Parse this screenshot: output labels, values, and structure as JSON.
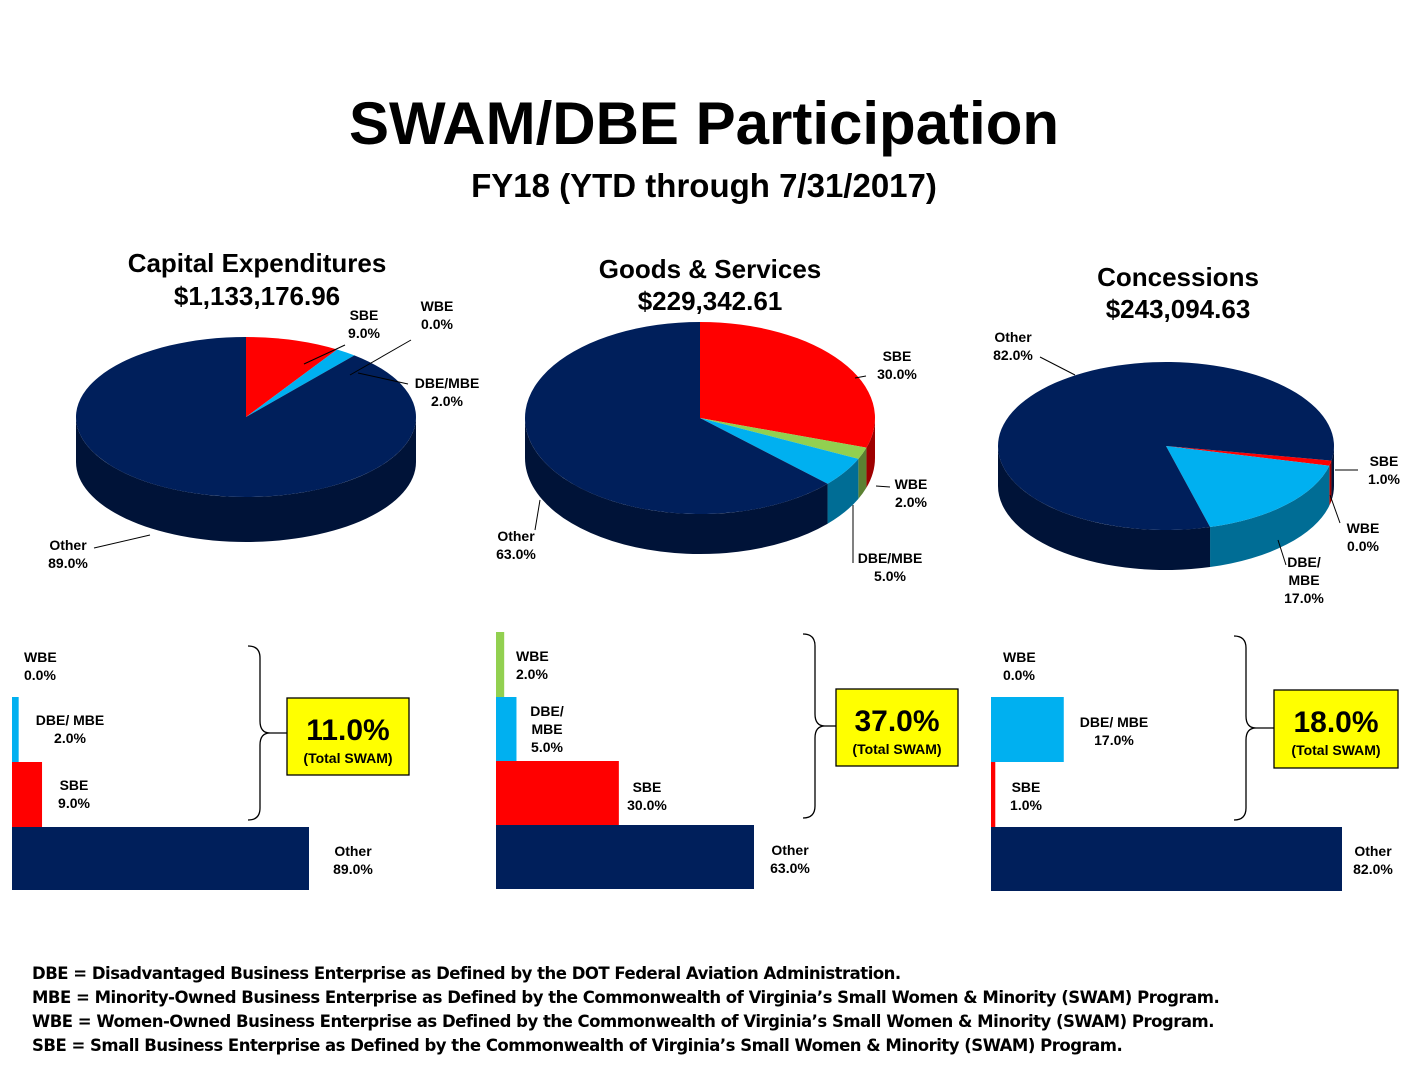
{
  "title": "SWAM/DBE Participation",
  "subtitle": "FY18 (YTD through 7/31/2017)",
  "colors": {
    "other": "#001f5b",
    "sbe": "#ff0000",
    "wbe": "#92d050",
    "dbe_mbe": "#00b0f0",
    "total_box": "#ffff00"
  },
  "chart_data": [
    {
      "type": "pie",
      "title": "Capital Expenditures",
      "amount": "$1,133,176.96",
      "slices": [
        {
          "key": "sbe",
          "value": 9.0,
          "label_lines": [
            "SBE",
            "9.0%"
          ]
        },
        {
          "key": "wbe",
          "value": 0.0,
          "label_lines": [
            "WBE",
            "0.0%"
          ]
        },
        {
          "key": "dbe_mbe",
          "value": 2.0,
          "label_lines": [
            "DBE/MBE",
            "2.0%"
          ]
        },
        {
          "key": "other",
          "value": 89.0,
          "label_lines": [
            "Other",
            "89.0%"
          ]
        }
      ]
    },
    {
      "type": "pie",
      "title": "Goods & Services",
      "amount": "$229,342.61",
      "slices": [
        {
          "key": "sbe",
          "value": 30.0,
          "label_lines": [
            "SBE",
            "30.0%"
          ]
        },
        {
          "key": "wbe",
          "value": 2.0,
          "label_lines": [
            "WBE",
            "2.0%"
          ]
        },
        {
          "key": "dbe_mbe",
          "value": 5.0,
          "label_lines": [
            "DBE/MBE",
            "5.0%"
          ]
        },
        {
          "key": "other",
          "value": 63.0,
          "label_lines": [
            "Other",
            "63.0%"
          ]
        }
      ]
    },
    {
      "type": "pie",
      "title": "Concessions",
      "amount": "$243,094.63",
      "slices": [
        {
          "key": "sbe",
          "value": 1.0,
          "label_lines": [
            "SBE",
            "1.0%"
          ]
        },
        {
          "key": "wbe",
          "value": 0.0,
          "label_lines": [
            "WBE",
            "0.0%"
          ]
        },
        {
          "key": "dbe_mbe",
          "value": 17.0,
          "label_lines": [
            "DBE/",
            "MBE",
            "17.0%"
          ]
        },
        {
          "key": "other",
          "value": 82.0,
          "label_lines": [
            "Other",
            "82.0%"
          ]
        }
      ]
    },
    {
      "type": "bar",
      "orientation": "horizontal",
      "categories": [
        "WBE",
        "DBE/ MBE",
        "SBE",
        "Other"
      ],
      "series_keys": [
        "wbe",
        "dbe_mbe",
        "sbe",
        "other"
      ],
      "values": [
        0.0,
        2.0,
        9.0,
        89.0
      ],
      "label_lines": [
        [
          "WBE",
          "0.0%"
        ],
        [
          "DBE/ MBE",
          "2.0%"
        ],
        [
          "SBE",
          "9.0%"
        ],
        [
          "Other",
          "89.0%"
        ]
      ],
      "total": "11.0%",
      "total_label": "(Total SWAM)"
    },
    {
      "type": "bar",
      "orientation": "horizontal",
      "categories": [
        "WBE",
        "DBE/ MBE",
        "SBE",
        "Other"
      ],
      "series_keys": [
        "wbe",
        "dbe_mbe",
        "sbe",
        "other"
      ],
      "values": [
        2.0,
        5.0,
        30.0,
        63.0
      ],
      "label_lines": [
        [
          "WBE",
          "2.0%"
        ],
        [
          "DBE/",
          "MBE",
          "5.0%"
        ],
        [
          "SBE",
          "30.0%"
        ],
        [
          "Other",
          "63.0%"
        ]
      ],
      "total": "37.0%",
      "total_label": "(Total SWAM)"
    },
    {
      "type": "bar",
      "orientation": "horizontal",
      "categories": [
        "WBE",
        "DBE/ MBE",
        "SBE",
        "Other"
      ],
      "series_keys": [
        "wbe",
        "dbe_mbe",
        "sbe",
        "other"
      ],
      "values": [
        0.0,
        17.0,
        1.0,
        82.0
      ],
      "label_lines": [
        [
          "WBE",
          "0.0%"
        ],
        [
          "DBE/ MBE",
          "17.0%"
        ],
        [
          "SBE",
          "1.0%"
        ],
        [
          "Other",
          "82.0%"
        ]
      ],
      "total": "18.0%",
      "total_label": "(Total SWAM)"
    }
  ],
  "footnotes": [
    "DBE = Disadvantaged Business Enterprise as Defined by the DOT Federal Aviation Administration.",
    "MBE = Minority-Owned Business Enterprise as Defined by the Commonwealth of Virginia’s Small Women & Minority (SWAM) Program.",
    "WBE = Women-Owned Business Enterprise as Defined by the Commonwealth of Virginia’s Small Women & Minority (SWAM) Program.",
    "SBE = Small Business Enterprise as Defined by the Commonwealth of Virginia’s Small Women & Minority (SWAM) Program."
  ]
}
